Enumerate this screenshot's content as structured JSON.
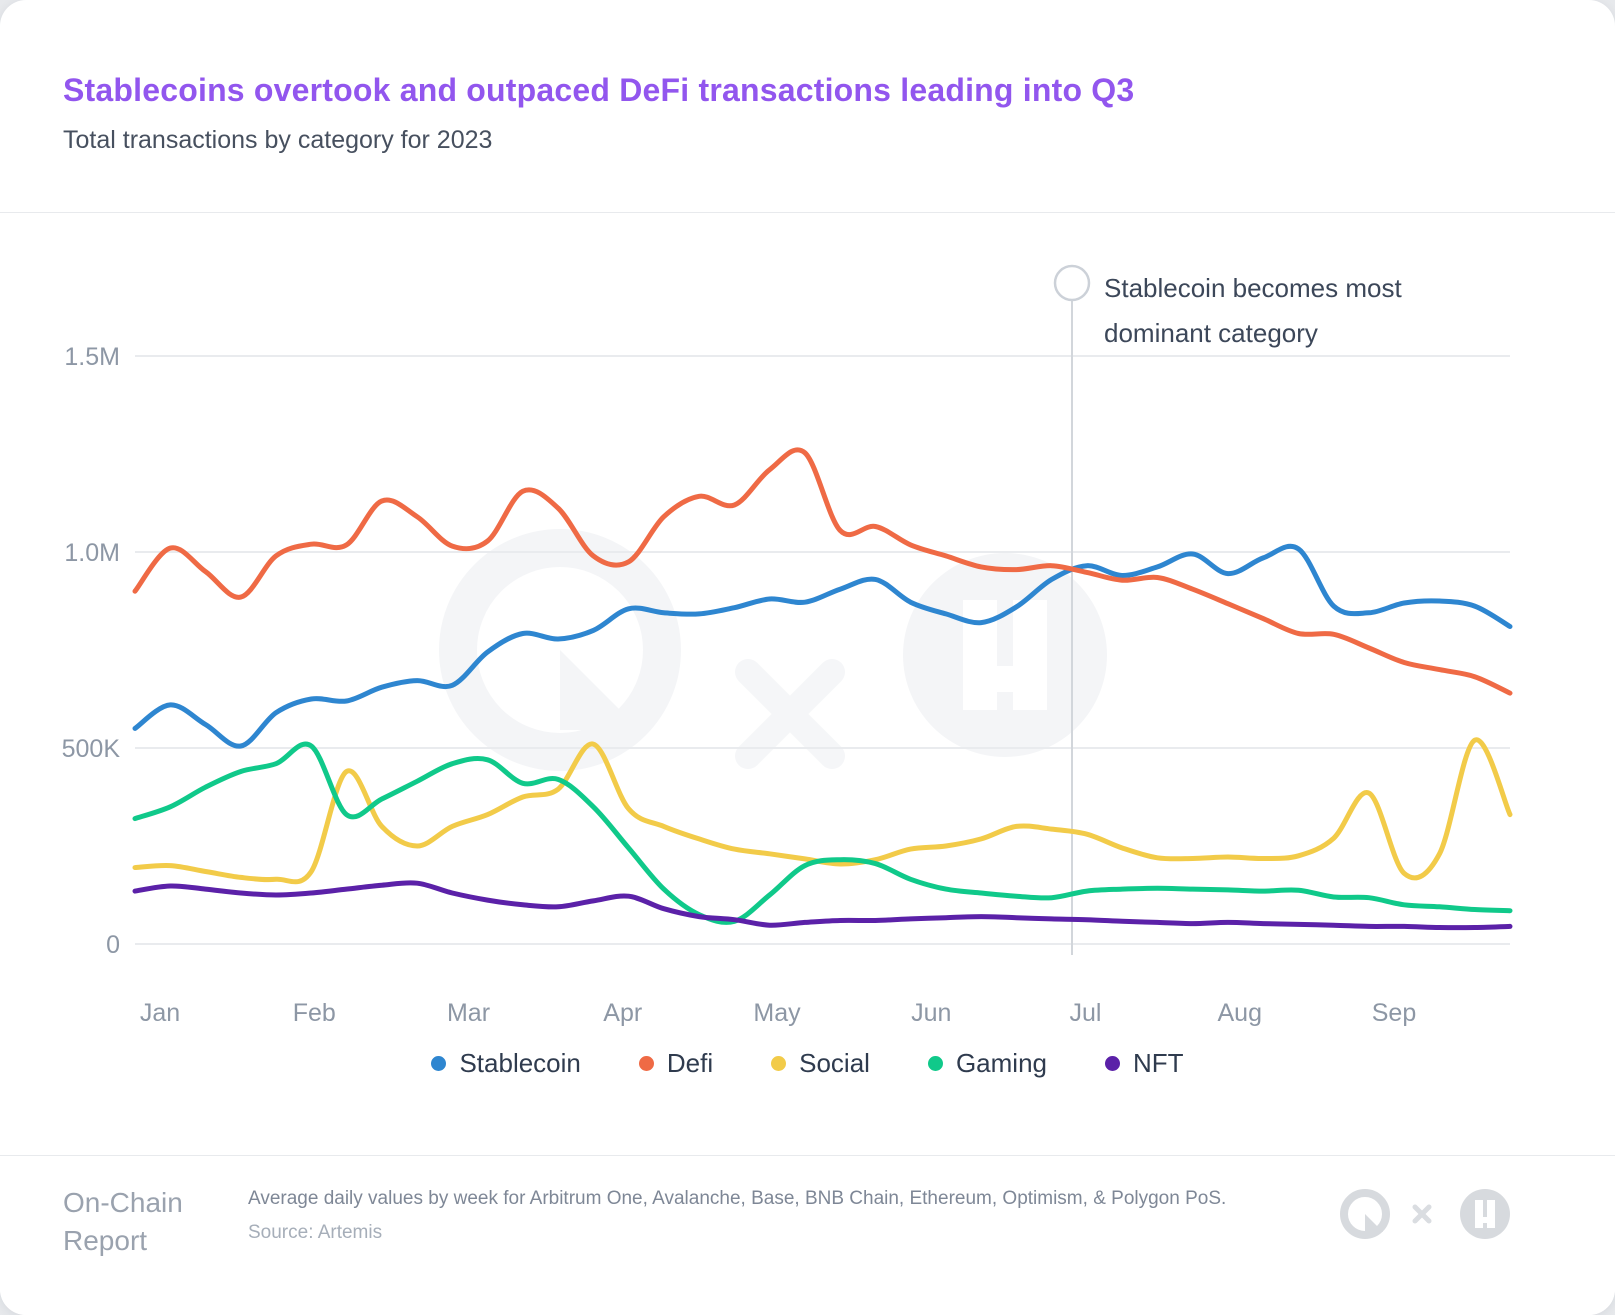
{
  "header": {
    "title": "Stablecoins overtook and outpaced DeFi transactions leading into Q3",
    "subtitle": "Total transactions by category for 2023"
  },
  "annotation": {
    "line1": "Stablecoin becomes most",
    "line2": "dominant category"
  },
  "chart_data": {
    "type": "line",
    "title": "Total transactions by category for 2023",
    "xlabel": "",
    "ylabel": "",
    "x_months": [
      "Jan",
      "Feb",
      "Mar",
      "Apr",
      "May",
      "Jun",
      "Jul",
      "Aug",
      "Sep"
    ],
    "y_ticks": [
      {
        "label": "0",
        "value": 0
      },
      {
        "label": "500K",
        "value": 500000
      },
      {
        "label": "1.0M",
        "value": 1000000
      },
      {
        "label": "1.5M",
        "value": 1500000
      }
    ],
    "ylim": [
      0,
      1500000
    ],
    "grid": "horizontal",
    "legend_position": "bottom",
    "sampling": "weekly",
    "annotation_week": 26.6,
    "series": [
      {
        "name": "Stablecoin",
        "color": "#2e86d0",
        "values_thousands": [
          550,
          610,
          560,
          505,
          590,
          625,
          620,
          655,
          672,
          660,
          745,
          792,
          778,
          800,
          855,
          845,
          842,
          858,
          880,
          872,
          905,
          930,
          872,
          842,
          820,
          860,
          930,
          965,
          940,
          962,
          995,
          945,
          985,
          1008,
          862,
          845,
          870,
          875,
          862,
          810
        ]
      },
      {
        "name": "Defi",
        "color": "#ef6a45",
        "values_thousands": [
          900,
          1010,
          950,
          885,
          990,
          1020,
          1018,
          1130,
          1090,
          1015,
          1028,
          1155,
          1112,
          990,
          975,
          1090,
          1142,
          1120,
          1210,
          1253,
          1055,
          1065,
          1018,
          990,
          962,
          955,
          965,
          948,
          928,
          935,
          905,
          868,
          830,
          792,
          790,
          755,
          718,
          700,
          682,
          640
        ]
      },
      {
        "name": "Social",
        "color": "#f2cb49",
        "values_thousands": [
          195,
          200,
          185,
          170,
          165,
          185,
          440,
          300,
          250,
          300,
          330,
          375,
          395,
          510,
          345,
          300,
          268,
          242,
          230,
          217,
          204,
          215,
          242,
          250,
          268,
          300,
          293,
          280,
          245,
          220,
          218,
          222,
          218,
          225,
          270,
          385,
          180,
          230,
          520,
          330
        ]
      },
      {
        "name": "Gaming",
        "color": "#10c98a",
        "values_thousands": [
          320,
          350,
          400,
          440,
          460,
          505,
          330,
          370,
          415,
          460,
          470,
          410,
          420,
          350,
          245,
          140,
          75,
          58,
          125,
          200,
          215,
          205,
          165,
          140,
          130,
          122,
          118,
          135,
          140,
          142,
          140,
          138,
          135,
          137,
          120,
          118,
          100,
          95,
          88,
          85
        ]
      },
      {
        "name": "NFT",
        "color": "#5b21a8",
        "values_thousands": [
          135,
          148,
          140,
          130,
          125,
          130,
          140,
          150,
          155,
          130,
          112,
          100,
          95,
          110,
          122,
          90,
          70,
          62,
          48,
          55,
          60,
          60,
          64,
          67,
          70,
          67,
          64,
          62,
          58,
          55,
          52,
          55,
          52,
          50,
          48,
          45,
          45,
          42,
          42,
          45
        ]
      }
    ]
  },
  "footer": {
    "brand_line1": "On-Chain",
    "brand_line2": "Report",
    "description": "Average daily values by week for Arbitrum One, Avalanche, Base, BNB Chain, Ethereum, Optimism, & Polygon PoS.",
    "source": "Source: Artemis"
  }
}
